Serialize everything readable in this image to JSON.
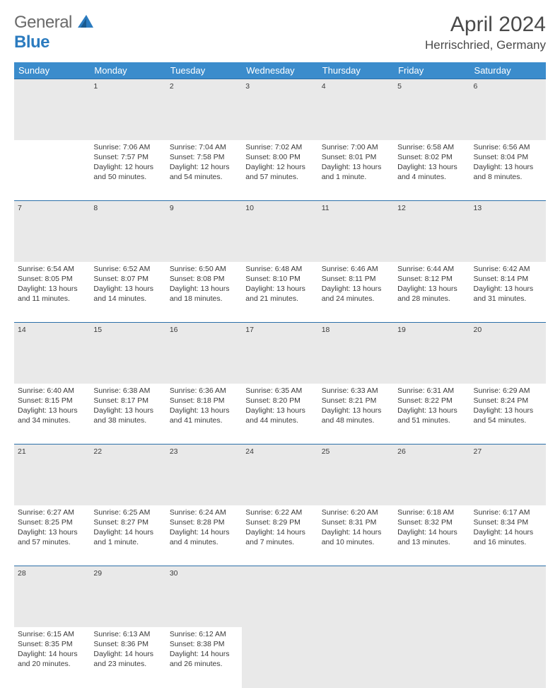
{
  "logo": {
    "general": "General",
    "blue": "Blue",
    "triangle_color": "#2b7bbf"
  },
  "title": "April 2024",
  "location": "Herrischried, Germany",
  "header_bg": "#3b8ccc",
  "daynum_bg": "#e9e9e9",
  "rule_color": "#2b6fa8",
  "weekdays": [
    "Sunday",
    "Monday",
    "Tuesday",
    "Wednesday",
    "Thursday",
    "Friday",
    "Saturday"
  ],
  "weeks": [
    [
      null,
      {
        "n": "1",
        "sr": "7:06 AM",
        "ss": "7:57 PM",
        "dl": "12 hours and 50 minutes."
      },
      {
        "n": "2",
        "sr": "7:04 AM",
        "ss": "7:58 PM",
        "dl": "12 hours and 54 minutes."
      },
      {
        "n": "3",
        "sr": "7:02 AM",
        "ss": "8:00 PM",
        "dl": "12 hours and 57 minutes."
      },
      {
        "n": "4",
        "sr": "7:00 AM",
        "ss": "8:01 PM",
        "dl": "13 hours and 1 minute."
      },
      {
        "n": "5",
        "sr": "6:58 AM",
        "ss": "8:02 PM",
        "dl": "13 hours and 4 minutes."
      },
      {
        "n": "6",
        "sr": "6:56 AM",
        "ss": "8:04 PM",
        "dl": "13 hours and 8 minutes."
      }
    ],
    [
      {
        "n": "7",
        "sr": "6:54 AM",
        "ss": "8:05 PM",
        "dl": "13 hours and 11 minutes."
      },
      {
        "n": "8",
        "sr": "6:52 AM",
        "ss": "8:07 PM",
        "dl": "13 hours and 14 minutes."
      },
      {
        "n": "9",
        "sr": "6:50 AM",
        "ss": "8:08 PM",
        "dl": "13 hours and 18 minutes."
      },
      {
        "n": "10",
        "sr": "6:48 AM",
        "ss": "8:10 PM",
        "dl": "13 hours and 21 minutes."
      },
      {
        "n": "11",
        "sr": "6:46 AM",
        "ss": "8:11 PM",
        "dl": "13 hours and 24 minutes."
      },
      {
        "n": "12",
        "sr": "6:44 AM",
        "ss": "8:12 PM",
        "dl": "13 hours and 28 minutes."
      },
      {
        "n": "13",
        "sr": "6:42 AM",
        "ss": "8:14 PM",
        "dl": "13 hours and 31 minutes."
      }
    ],
    [
      {
        "n": "14",
        "sr": "6:40 AM",
        "ss": "8:15 PM",
        "dl": "13 hours and 34 minutes."
      },
      {
        "n": "15",
        "sr": "6:38 AM",
        "ss": "8:17 PM",
        "dl": "13 hours and 38 minutes."
      },
      {
        "n": "16",
        "sr": "6:36 AM",
        "ss": "8:18 PM",
        "dl": "13 hours and 41 minutes."
      },
      {
        "n": "17",
        "sr": "6:35 AM",
        "ss": "8:20 PM",
        "dl": "13 hours and 44 minutes."
      },
      {
        "n": "18",
        "sr": "6:33 AM",
        "ss": "8:21 PM",
        "dl": "13 hours and 48 minutes."
      },
      {
        "n": "19",
        "sr": "6:31 AM",
        "ss": "8:22 PM",
        "dl": "13 hours and 51 minutes."
      },
      {
        "n": "20",
        "sr": "6:29 AM",
        "ss": "8:24 PM",
        "dl": "13 hours and 54 minutes."
      }
    ],
    [
      {
        "n": "21",
        "sr": "6:27 AM",
        "ss": "8:25 PM",
        "dl": "13 hours and 57 minutes."
      },
      {
        "n": "22",
        "sr": "6:25 AM",
        "ss": "8:27 PM",
        "dl": "14 hours and 1 minute."
      },
      {
        "n": "23",
        "sr": "6:24 AM",
        "ss": "8:28 PM",
        "dl": "14 hours and 4 minutes."
      },
      {
        "n": "24",
        "sr": "6:22 AM",
        "ss": "8:29 PM",
        "dl": "14 hours and 7 minutes."
      },
      {
        "n": "25",
        "sr": "6:20 AM",
        "ss": "8:31 PM",
        "dl": "14 hours and 10 minutes."
      },
      {
        "n": "26",
        "sr": "6:18 AM",
        "ss": "8:32 PM",
        "dl": "14 hours and 13 minutes."
      },
      {
        "n": "27",
        "sr": "6:17 AM",
        "ss": "8:34 PM",
        "dl": "14 hours and 16 minutes."
      }
    ],
    [
      {
        "n": "28",
        "sr": "6:15 AM",
        "ss": "8:35 PM",
        "dl": "14 hours and 20 minutes."
      },
      {
        "n": "29",
        "sr": "6:13 AM",
        "ss": "8:36 PM",
        "dl": "14 hours and 23 minutes."
      },
      {
        "n": "30",
        "sr": "6:12 AM",
        "ss": "8:38 PM",
        "dl": "14 hours and 26 minutes."
      },
      null,
      null,
      null,
      null
    ]
  ],
  "labels": {
    "sunrise": "Sunrise:",
    "sunset": "Sunset:",
    "daylight": "Daylight:"
  }
}
